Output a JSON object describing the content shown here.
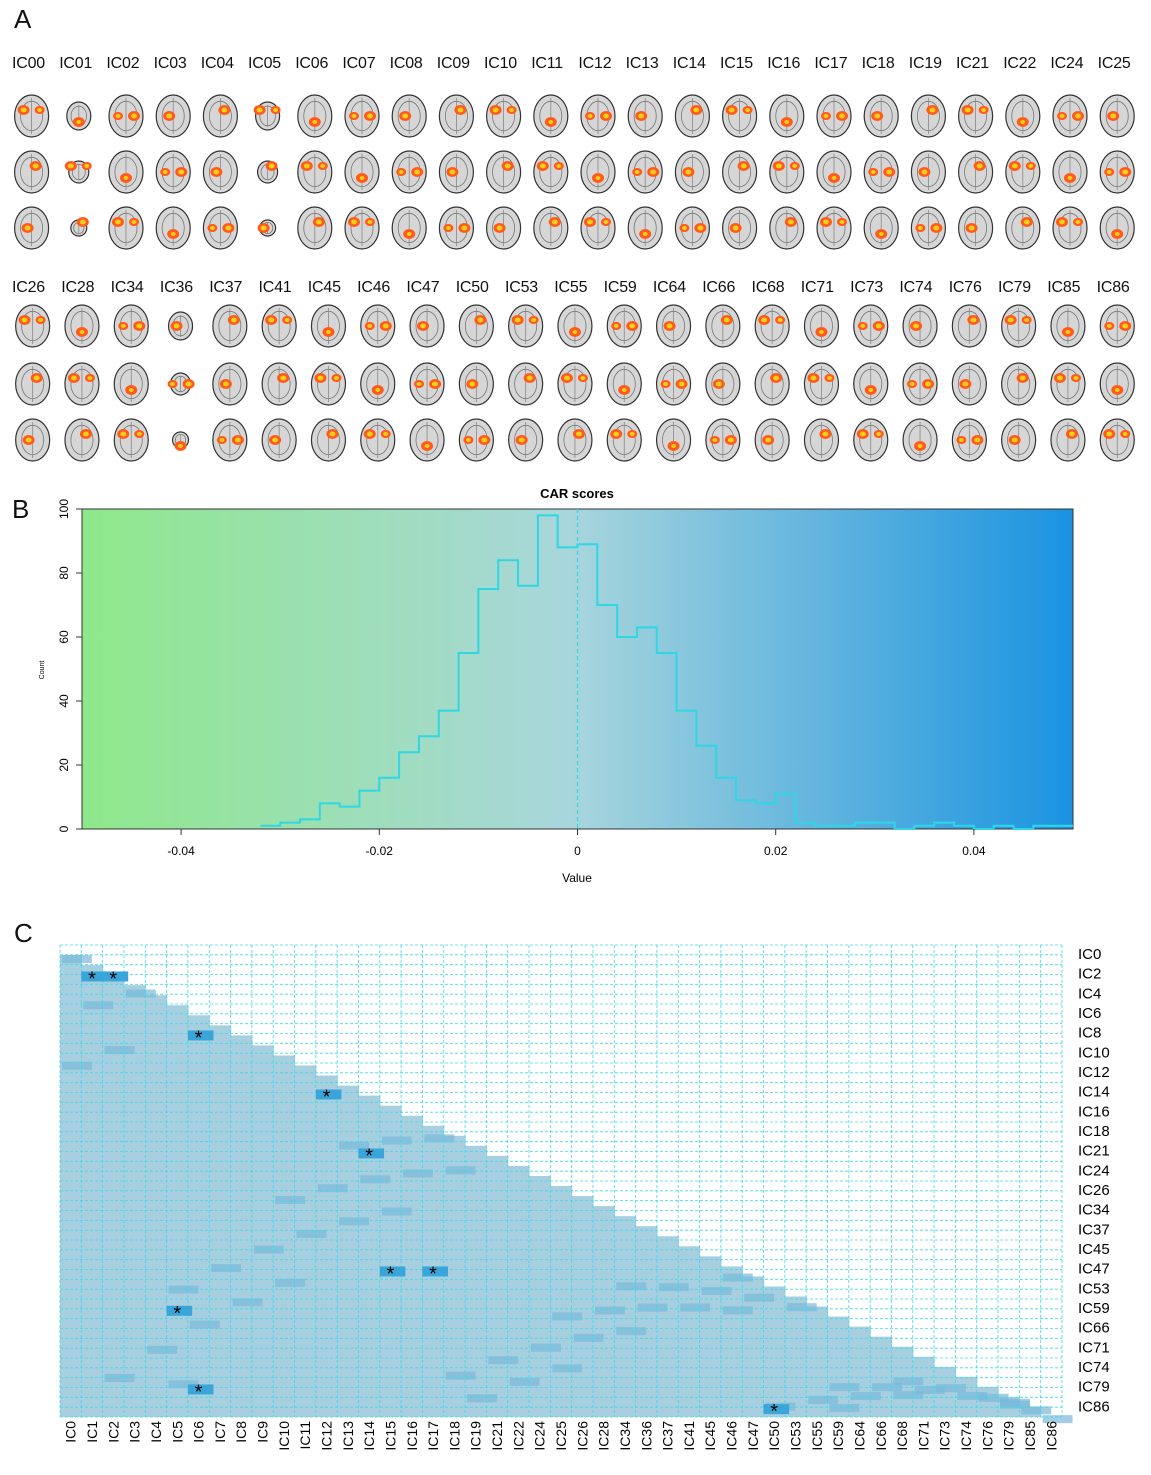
{
  "panels": {
    "a": "A",
    "b": "B",
    "c": "C"
  },
  "panel_a": {
    "row1_labels": [
      "IC00",
      "IC01",
      "IC02",
      "IC03",
      "IC04",
      "IC05",
      "IC06",
      "IC07",
      "IC08",
      "IC09",
      "IC10",
      "IC11",
      "IC12",
      "IC13",
      "IC14",
      "IC15",
      "IC16",
      "IC17",
      "IC18",
      "IC19",
      "IC21",
      "IC22",
      "IC24",
      "IC25"
    ],
    "row2_labels": [
      "IC26",
      "IC28",
      "IC34",
      "IC36",
      "IC37",
      "IC41",
      "IC45",
      "IC46",
      "IC47",
      "IC50",
      "IC53",
      "IC55",
      "IC59",
      "IC64",
      "IC66",
      "IC68",
      "IC71",
      "IC73",
      "IC74",
      "IC76",
      "IC79",
      "IC85",
      "IC86"
    ]
  },
  "chart_data": [
    {
      "type": "histogram",
      "title": "CAR scores",
      "xlabel": "Value",
      "ylabel": "Count",
      "xlim": [
        -0.05,
        0.05
      ],
      "ylim": [
        0,
        100
      ],
      "x_ticks": [
        "-0.04",
        "-0.02",
        "0",
        "0.02",
        "0.04"
      ],
      "y_ticks": [
        "0",
        "20",
        "40",
        "60",
        "80",
        "100"
      ],
      "bin_width": 0.002,
      "bin_start": -0.032,
      "counts": [
        1,
        2,
        3,
        8,
        7,
        12,
        16,
        24,
        29,
        37,
        55,
        75,
        84,
        76,
        98,
        88,
        89,
        70,
        60,
        63,
        55,
        37,
        26,
        16,
        9,
        8,
        11,
        2,
        1,
        1,
        2,
        2,
        0,
        1,
        2,
        1,
        0,
        1,
        0,
        1,
        1
      ],
      "reference_line_x": 0,
      "background_gradient": [
        "#8ee88a",
        "#a9d6dc",
        "#1a93e0"
      ]
    },
    {
      "type": "heatmap",
      "row_labels": [
        "IC0",
        "IC2",
        "IC4",
        "IC6",
        "IC8",
        "IC10",
        "IC12",
        "IC14",
        "IC16",
        "IC18",
        "IC21",
        "IC24",
        "IC26",
        "IC34",
        "IC37",
        "IC45",
        "IC47",
        "IC53",
        "IC59",
        "IC66",
        "IC71",
        "IC74",
        "IC79",
        "IC86"
      ],
      "col_labels": [
        "IC0",
        "IC1",
        "IC2",
        "IC3",
        "IC4",
        "IC5",
        "IC6",
        "IC7",
        "IC8",
        "IC9",
        "IC10",
        "IC11",
        "IC12",
        "IC13",
        "IC14",
        "IC15",
        "IC16",
        "IC17",
        "IC18",
        "IC19",
        "IC21",
        "IC22",
        "IC24",
        "IC25",
        "IC26",
        "IC28",
        "IC34",
        "IC36",
        "IC37",
        "IC41",
        "IC45",
        "IC46",
        "IC47",
        "IC50",
        "IC53",
        "IC55",
        "IC59",
        "IC64",
        "IC66",
        "IC68",
        "IC71",
        "IC73",
        "IC74",
        "IC76",
        "IC79",
        "IC85",
        "IC86"
      ],
      "significance_marker": "*",
      "significant_cells": [
        [
          2,
          1
        ],
        [
          3,
          2
        ],
        [
          8,
          6
        ],
        [
          14,
          12
        ],
        [
          21,
          14
        ],
        [
          47,
          15
        ],
        [
          47,
          17
        ],
        [
          59,
          5
        ],
        [
          79,
          6
        ],
        [
          86,
          33
        ]
      ],
      "colors": {
        "cell": "#a8cfe0",
        "strong": "#3aa5d8",
        "grid": "#40d8e8"
      }
    }
  ]
}
